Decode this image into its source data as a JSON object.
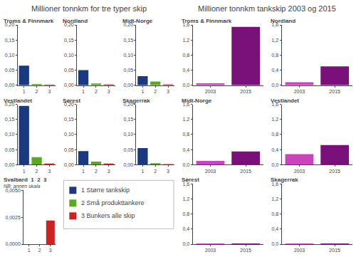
{
  "chart_data": [
    {
      "type": "bar",
      "title": "Millioner tonnkm for tre typer skip",
      "categories": [
        "1",
        "2",
        "3"
      ],
      "colors": [
        "#1a3a80",
        "#5aaa20",
        "#cc2222"
      ],
      "ylim": [
        0,
        0.2
      ],
      "yticks": [
        {
          "value": 0,
          "label": "0,00"
        },
        {
          "value": 0.05,
          "label": "0,05"
        },
        {
          "value": 0.1,
          "label": "0,10"
        },
        {
          "value": 0.15,
          "label": "0,15"
        },
        {
          "value": 0.2,
          "label": "0,20"
        }
      ],
      "grid": false,
      "annotations": [
        {
          "text": "1 Større tankskip",
          "color": "#1a3a80"
        },
        {
          "text": "2 Små produkttankere",
          "color": "#5aaa20"
        },
        {
          "text": "3 Bunkers alle skip",
          "color": "#cc2222"
        }
      ],
      "panels": [
        {
          "title": "Troms & Finnmark",
          "values": [
            0.065,
            0.004,
            0.002
          ]
        },
        {
          "title": "Nordland",
          "values": [
            0.05,
            0.006,
            0.003
          ]
        },
        {
          "title": "Midt-Norge",
          "values": [
            0.03,
            0.012,
            0.003
          ]
        },
        {
          "title": "Vestlandet",
          "values": [
            0.195,
            0.025,
            0.004
          ]
        },
        {
          "title": "Sørest",
          "values": [
            0.045,
            0.01,
            0.004
          ]
        },
        {
          "title": "Skagerrak",
          "values": [
            0.055,
            0.005,
            0.002
          ]
        },
        {
          "title": "Svalbard  1  2  3",
          "subtitle": "NB: annen skala",
          "values": [
            0,
            0,
            0.0022
          ],
          "ylim": [
            0,
            0.005
          ],
          "yticks": [
            {
              "value": 0,
              "label": "0,0000"
            },
            {
              "value": 0.0025,
              "label": "0,0025"
            },
            {
              "value": 0.005,
              "label": "0,0050"
            }
          ]
        }
      ]
    },
    {
      "type": "bar",
      "title": "Millioner tonnkm tankskip 2003 og 2015",
      "categories": [
        "2003",
        "2015"
      ],
      "colors": [
        "#cc44bb",
        "#7a107a"
      ],
      "ylim": [
        0,
        1.6
      ],
      "yticks": [
        {
          "value": 0,
          "label": "0,0"
        },
        {
          "value": 0.4,
          "label": "0,4"
        },
        {
          "value": 0.8,
          "label": "0,8"
        },
        {
          "value": 1.2,
          "label": "1,2"
        },
        {
          "value": 1.6,
          "label": "1,6"
        }
      ],
      "grid": false,
      "panels": [
        {
          "title": "Troms & Finnmark",
          "values": [
            0.05,
            1.55
          ]
        },
        {
          "title": "Nordland",
          "values": [
            0.08,
            0.5
          ]
        },
        {
          "title": "Midt-Norge",
          "values": [
            0.1,
            0.35
          ]
        },
        {
          "title": "Vestlandet",
          "values": [
            0.28,
            0.52
          ]
        },
        {
          "title": "Sørest",
          "values": [
            0.02,
            0.02
          ]
        },
        {
          "title": "Skagerrak",
          "values": [
            0.02,
            0.02
          ]
        }
      ]
    }
  ]
}
